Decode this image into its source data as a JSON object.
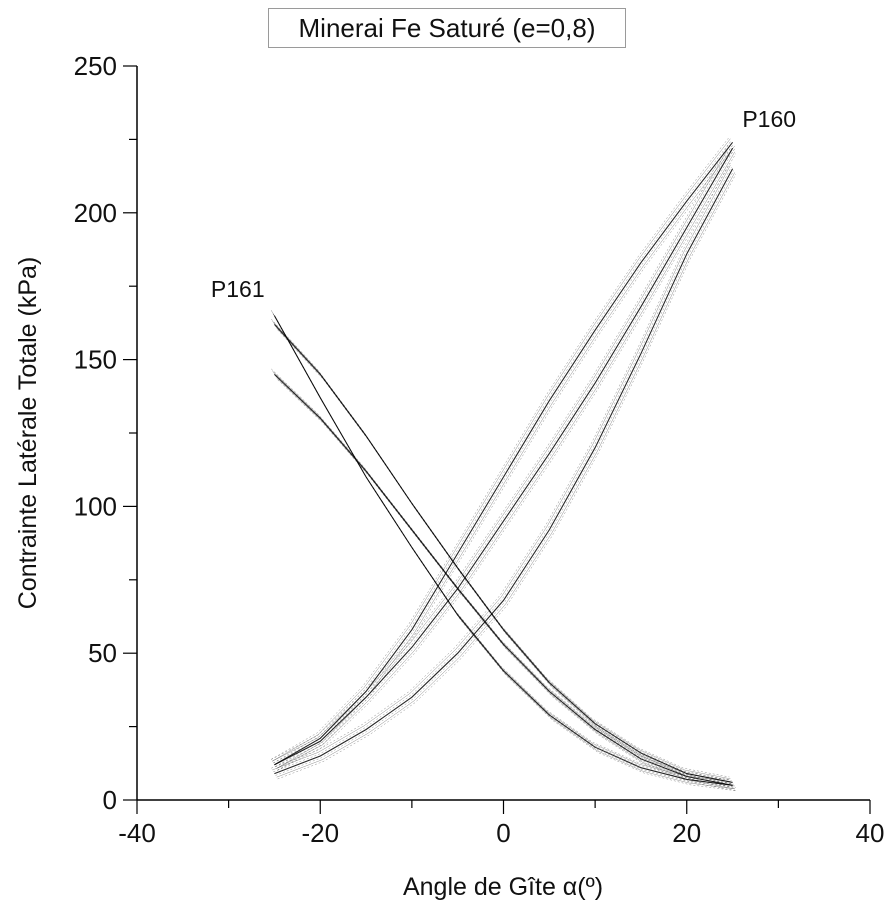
{
  "chart_data": {
    "type": "line",
    "title": "Minerai Fe Saturé (e=0,8)",
    "xlabel": "Angle de Gîte α(º)",
    "ylabel": "Contrainte Latérale Totale (kPa)",
    "xlim": [
      -40,
      40
    ],
    "ylim": [
      0,
      250
    ],
    "xticks": [
      -40,
      -20,
      0,
      20,
      40
    ],
    "yticks": [
      0,
      50,
      100,
      150,
      200,
      250
    ],
    "grid": false,
    "line_color": "#000000",
    "annotations": [
      {
        "text": "P160",
        "x": 29,
        "y": 232
      },
      {
        "text": "P161",
        "x": -29,
        "y": 174
      }
    ],
    "series": [
      {
        "x": [
          -25,
          -20,
          -15,
          -10,
          -5,
          0,
          5,
          10,
          15,
          20,
          25
        ],
        "y": [
          12,
          20,
          35,
          52,
          72,
          95,
          118,
          142,
          168,
          195,
          222
        ]
      },
      {
        "x": [
          -25,
          -20,
          -15,
          -10,
          -5,
          0,
          5,
          10,
          15,
          20,
          25
        ],
        "y": [
          12,
          21,
          37,
          58,
          84,
          110,
          136,
          160,
          183,
          204,
          224
        ]
      },
      {
        "x": [
          -25,
          -20,
          -15,
          -10,
          -5,
          0,
          5,
          10,
          15,
          20,
          25
        ],
        "y": [
          9,
          15,
          24,
          35,
          50,
          68,
          92,
          120,
          152,
          186,
          215
        ]
      },
      {
        "x": [
          -25,
          -20,
          -15,
          -10,
          -5,
          0,
          5,
          10,
          15,
          20,
          25
        ],
        "y": [
          165,
          137,
          110,
          86,
          63,
          44,
          29,
          18,
          11,
          7,
          5
        ]
      },
      {
        "x": [
          -25,
          -20,
          -15,
          -10,
          -5,
          0,
          5,
          10,
          15,
          20,
          25
        ],
        "y": [
          162,
          145,
          124,
          101,
          79,
          58,
          40,
          26,
          16,
          9,
          6
        ]
      },
      {
        "x": [
          -25,
          -20,
          -15,
          -10,
          -5,
          0,
          5,
          10,
          15,
          20,
          25
        ],
        "y": [
          145,
          130,
          112,
          92,
          72,
          53,
          37,
          24,
          14,
          8,
          5
        ]
      }
    ]
  }
}
